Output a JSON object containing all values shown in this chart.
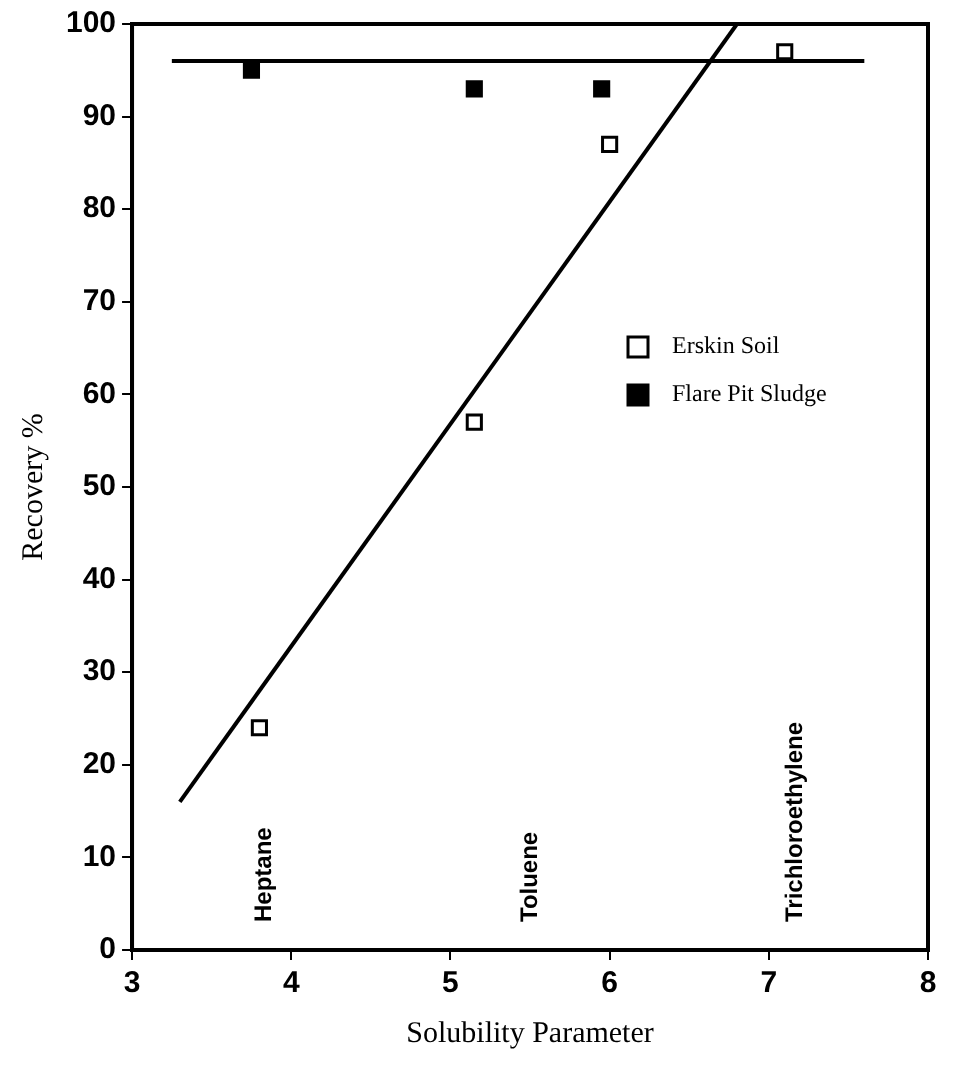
{
  "chart_data": {
    "type": "scatter",
    "xlabel": "Solubility Parameter",
    "ylabel": "Recovery %",
    "xlim": [
      3,
      8
    ],
    "xticks": [
      3,
      4,
      5,
      6,
      7,
      8
    ],
    "ylim": [
      0,
      100
    ],
    "yticks": [
      0,
      10,
      20,
      30,
      40,
      50,
      60,
      70,
      80,
      90,
      100
    ],
    "grid": false,
    "legend": "right",
    "series": [
      {
        "name": "Erskin Soil",
        "marker": "square",
        "color": "#000000",
        "x": [
          3.8,
          5.15,
          6.0,
          7.1
        ],
        "values": [
          24,
          57,
          87,
          97
        ]
      },
      {
        "name": "Flare Pit Sludge",
        "marker": "square",
        "color": "#000000",
        "x": [
          3.75,
          5.15,
          5.95
        ],
        "values": [
          95,
          93,
          93
        ]
      },
      {
        "type": "line",
        "color": "#000000",
        "x": [
          3.3,
          6.8
        ],
        "values": [
          16,
          100
        ]
      },
      {
        "type": "line",
        "color": "#000000",
        "x": [
          3.25,
          7.6
        ],
        "values": [
          96,
          96
        ]
      }
    ],
    "annotations": [
      "Heptane",
      "Toluene",
      "Trichloroethylene"
    ]
  }
}
